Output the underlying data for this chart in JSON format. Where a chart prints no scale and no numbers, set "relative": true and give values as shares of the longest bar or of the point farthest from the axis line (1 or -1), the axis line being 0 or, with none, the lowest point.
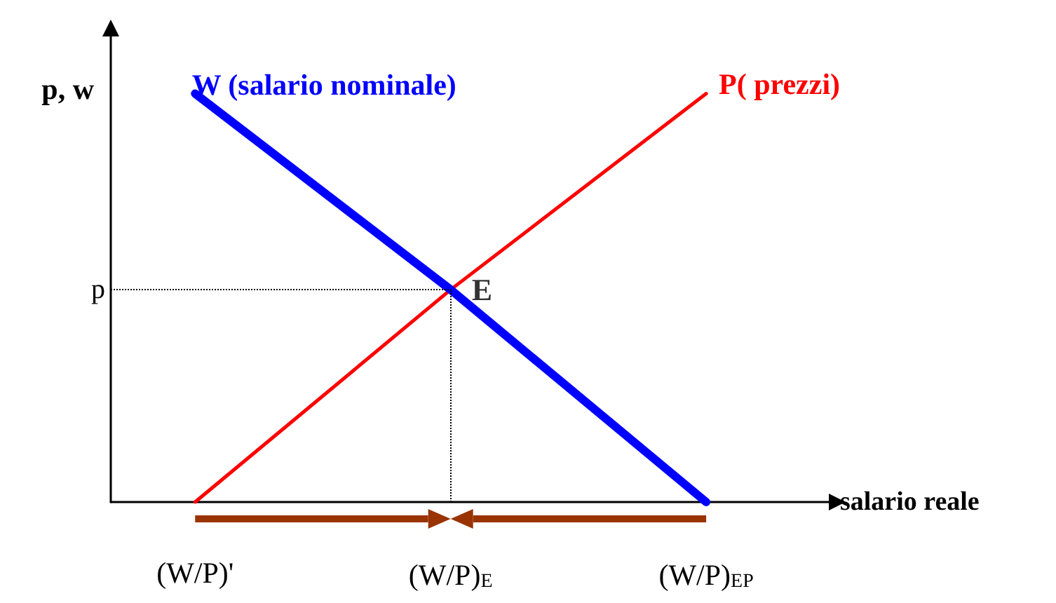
{
  "chart_data": {
    "type": "line",
    "relative": true,
    "xlabel": "salario reale",
    "ylabel": "p, w",
    "categories": [
      "(W/P)'",
      "(W/P)$_{E}$",
      "(W/P)$_{EP}$"
    ],
    "series": [
      {
        "name": "W (salario nominale)",
        "color": "#0000ff",
        "values": [
          1,
          0.52,
          0
        ]
      },
      {
        "name": "P( prezzi)",
        "color": "#ff0000",
        "values": [
          0,
          0.52,
          1
        ]
      }
    ],
    "ref_lines": [
      {
        "axis": "y",
        "value": 0.52,
        "label": "p",
        "line_style": "dotted",
        "color": "#000000"
      },
      {
        "axis": "x",
        "value": "(W/P)$_{E}$",
        "label": null,
        "line_style": "dotted",
        "color": "#000000"
      }
    ],
    "annotations": [
      {
        "text": "E",
        "x": "(W/P)$_{E}$",
        "y": 0.52
      }
    ],
    "legend": false,
    "grid": false,
    "marker": "none",
    "line_style": "solid"
  }
}
